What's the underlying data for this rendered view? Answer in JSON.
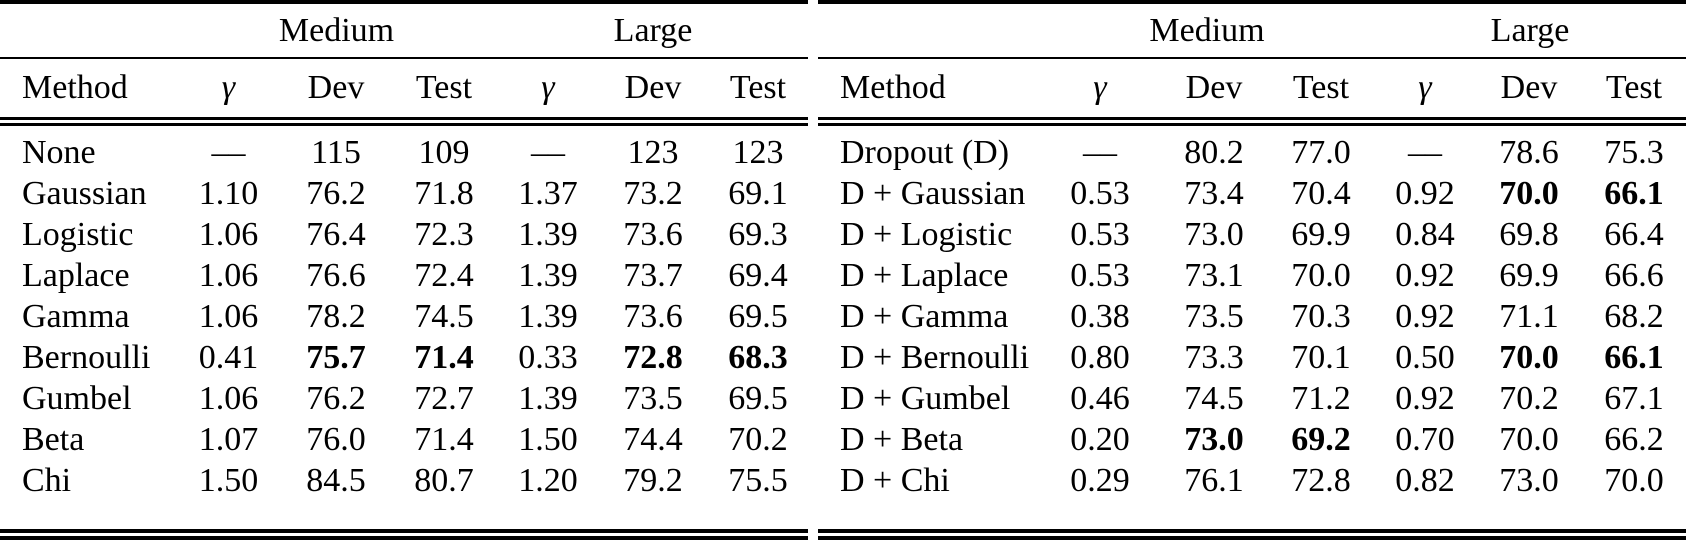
{
  "left_table": {
    "group_medium": "Medium",
    "group_large": "Large",
    "columns": [
      {
        "label": "Method",
        "italic": false
      },
      {
        "label": "γ",
        "italic": true
      },
      {
        "label": "Dev",
        "italic": false
      },
      {
        "label": "Test",
        "italic": false
      },
      {
        "label": "γ",
        "italic": true
      },
      {
        "label": "Dev",
        "italic": false
      },
      {
        "label": "Test",
        "italic": false
      }
    ],
    "rows": [
      {
        "cells": [
          "None",
          "––",
          "115",
          "109",
          "––",
          "123",
          "123"
        ],
        "bold": []
      },
      {
        "cells": [
          "Gaussian",
          "1.10",
          "76.2",
          "71.8",
          "1.37",
          "73.2",
          "69.1"
        ],
        "bold": []
      },
      {
        "cells": [
          "Logistic",
          "1.06",
          "76.4",
          "72.3",
          "1.39",
          "73.6",
          "69.3"
        ],
        "bold": []
      },
      {
        "cells": [
          "Laplace",
          "1.06",
          "76.6",
          "72.4",
          "1.39",
          "73.7",
          "69.4"
        ],
        "bold": []
      },
      {
        "cells": [
          "Gamma",
          "1.06",
          "78.2",
          "74.5",
          "1.39",
          "73.6",
          "69.5"
        ],
        "bold": []
      },
      {
        "cells": [
          "Bernoulli",
          "0.41",
          "75.7",
          "71.4",
          "0.33",
          "72.8",
          "68.3"
        ],
        "bold": [
          2,
          3,
          5,
          6
        ]
      },
      {
        "cells": [
          "Gumbel",
          "1.06",
          "76.2",
          "72.7",
          "1.39",
          "73.5",
          "69.5"
        ],
        "bold": []
      },
      {
        "cells": [
          "Beta",
          "1.07",
          "76.0",
          "71.4",
          "1.50",
          "74.4",
          "70.2"
        ],
        "bold": []
      },
      {
        "cells": [
          "Chi",
          "1.50",
          "84.5",
          "80.7",
          "1.20",
          "79.2",
          "75.5"
        ],
        "bold": []
      }
    ]
  },
  "right_table": {
    "group_medium": "Medium",
    "group_large": "Large",
    "columns": [
      {
        "label": "Method",
        "italic": false
      },
      {
        "label": "γ",
        "italic": true
      },
      {
        "label": "Dev",
        "italic": false
      },
      {
        "label": "Test",
        "italic": false
      },
      {
        "label": "γ",
        "italic": true
      },
      {
        "label": "Dev",
        "italic": false
      },
      {
        "label": "Test",
        "italic": false
      }
    ],
    "rows": [
      {
        "cells": [
          "Dropout (D)",
          "––",
          "80.2",
          "77.0",
          "––",
          "78.6",
          "75.3"
        ],
        "bold": []
      },
      {
        "cells": [
          "D + Gaussian",
          "0.53",
          "73.4",
          "70.4",
          "0.92",
          "70.0",
          "66.1"
        ],
        "bold": [
          5,
          6
        ]
      },
      {
        "cells": [
          "D + Logistic",
          "0.53",
          "73.0",
          "69.9",
          "0.84",
          "69.8",
          "66.4"
        ],
        "bold": []
      },
      {
        "cells": [
          "D + Laplace",
          "0.53",
          "73.1",
          "70.0",
          "0.92",
          "69.9",
          "66.6"
        ],
        "bold": []
      },
      {
        "cells": [
          "D + Gamma",
          "0.38",
          "73.5",
          "70.3",
          "0.92",
          "71.1",
          "68.2"
        ],
        "bold": []
      },
      {
        "cells": [
          "D + Bernoulli",
          "0.80",
          "73.3",
          "70.1",
          "0.50",
          "70.0",
          "66.1"
        ],
        "bold": [
          5,
          6
        ]
      },
      {
        "cells": [
          "D + Gumbel",
          "0.46",
          "74.5",
          "71.2",
          "0.92",
          "70.2",
          "67.1"
        ],
        "bold": []
      },
      {
        "cells": [
          "D + Beta",
          "0.20",
          "73.0",
          "69.2",
          "0.70",
          "70.0",
          "66.2"
        ],
        "bold": [
          2,
          3
        ]
      },
      {
        "cells": [
          "D + Chi",
          "0.29",
          "76.1",
          "72.8",
          "0.82",
          "73.0",
          "70.0"
        ],
        "bold": []
      }
    ]
  }
}
